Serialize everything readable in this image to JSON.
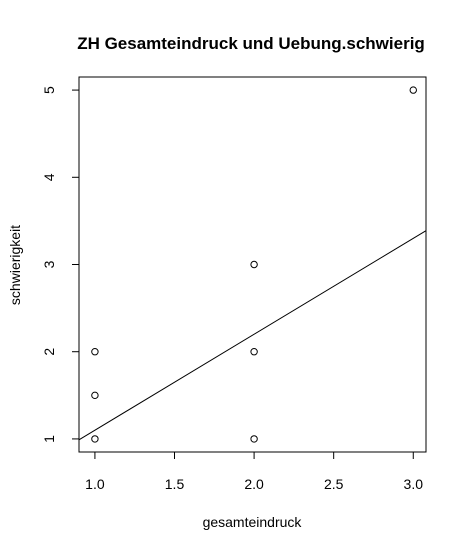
{
  "chart_data": {
    "type": "scatter",
    "title": "ZH Gesamteindruck und Uebung.schwierig",
    "xlabel": "gesamteindruck",
    "ylabel": "schwierigkeit",
    "xlim": [
      0.9,
      3.08
    ],
    "ylim": [
      0.85,
      5.15
    ],
    "x_ticks": [
      "1.0",
      "1.5",
      "2.0",
      "2.5",
      "3.0"
    ],
    "y_ticks": [
      "1",
      "2",
      "3",
      "4",
      "5"
    ],
    "points": [
      {
        "x": 1.0,
        "y": 1.0
      },
      {
        "x": 1.0,
        "y": 1.5
      },
      {
        "x": 1.0,
        "y": 2.0
      },
      {
        "x": 2.0,
        "y": 1.0
      },
      {
        "x": 2.0,
        "y": 2.0
      },
      {
        "x": 2.0,
        "y": 3.0
      },
      {
        "x": 3.0,
        "y": 5.0
      }
    ],
    "regression_line": {
      "intercept": 0.0,
      "slope": 1.1
    },
    "grid": false,
    "marker": "open-circle",
    "colors": {
      "points": "#000000",
      "line": "#000000",
      "axes": "#000000"
    }
  }
}
